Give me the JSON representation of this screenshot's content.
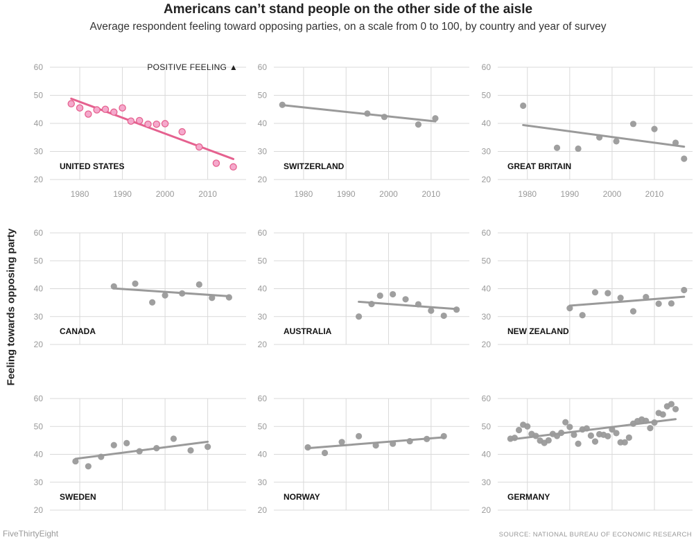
{
  "header": {
    "title": "Americans can’t stand people on the other side of the aisle",
    "subtitle": "Average respondent feeling toward opposing parties, on a scale from 0 to 100, by country and year of survey"
  },
  "footer": {
    "brand": "FiveThirtyEight",
    "source": "SOURCE: NATIONAL BUREAU OF ECONOMIC RESEARCH"
  },
  "colors": {
    "highlight": "#e5618f",
    "highlight_fill": "#f5a9cc",
    "neutral": "#9a9a9a",
    "grid": "#d9d9d9"
  },
  "chart_data": {
    "type": "scatter",
    "ylabel": "Feeling towards opposing party",
    "annotation": "POSITIVE FEELING ▲",
    "ylim": [
      20,
      60
    ],
    "yticks": [
      20,
      30,
      40,
      50,
      60
    ],
    "xlim": [
      1973,
      2019
    ],
    "xticks": [
      1980,
      1990,
      2000,
      2010
    ],
    "x_tick_label_rows": [
      0
    ],
    "panels": [
      {
        "name": "UNITED STATES",
        "highlight": true,
        "points": [
          [
            1978,
            47
          ],
          [
            1980,
            45.5
          ],
          [
            1982,
            43.3
          ],
          [
            1984,
            44.8
          ],
          [
            1986,
            45
          ],
          [
            1988,
            44
          ],
          [
            1990,
            45.5
          ],
          [
            1992,
            40.8
          ],
          [
            1994,
            41
          ],
          [
            1996,
            39.7
          ],
          [
            1998,
            39.7
          ],
          [
            2000,
            39.9
          ],
          [
            2004,
            37
          ],
          [
            2008,
            31.6
          ],
          [
            2012,
            25.8
          ],
          [
            2016,
            24.5
          ]
        ],
        "trend": [
          [
            1978,
            48.8
          ],
          [
            2016,
            27.3
          ]
        ]
      },
      {
        "name": "SWITZERLAND",
        "highlight": false,
        "points": [
          [
            1975,
            46.6
          ],
          [
            1995,
            43.5
          ],
          [
            1999,
            42.3
          ],
          [
            2007,
            39.6
          ],
          [
            2011,
            41.8
          ]
        ],
        "trend": [
          [
            1975,
            46.5
          ],
          [
            2011,
            40.7
          ]
        ]
      },
      {
        "name": "GREAT BRITAIN",
        "highlight": false,
        "points": [
          [
            1979,
            46.3
          ],
          [
            1987,
            31.3
          ],
          [
            1992,
            31
          ],
          [
            1997,
            35
          ],
          [
            2001,
            33.6
          ],
          [
            2005,
            39.8
          ],
          [
            2010,
            38
          ],
          [
            2015,
            33.1
          ],
          [
            2017,
            27.4
          ]
        ],
        "trend": [
          [
            1979,
            39.4
          ],
          [
            2017,
            31.7
          ]
        ]
      },
      {
        "name": "CANADA",
        "highlight": false,
        "points": [
          [
            1988,
            40.8
          ],
          [
            1993,
            41.8
          ],
          [
            1997,
            35.1
          ],
          [
            2000,
            37.6
          ],
          [
            2004,
            38.3
          ],
          [
            2008,
            41.5
          ],
          [
            2011,
            36.7
          ],
          [
            2015,
            36.9
          ]
        ],
        "trend": [
          [
            1988,
            40.1
          ],
          [
            2015,
            37.3
          ]
        ]
      },
      {
        "name": "AUSTRALIA",
        "highlight": false,
        "points": [
          [
            1993,
            30
          ],
          [
            1996,
            34.5
          ],
          [
            1998,
            37.5
          ],
          [
            2001,
            38
          ],
          [
            2004,
            36.2
          ],
          [
            2007,
            34.4
          ],
          [
            2010,
            32.1
          ],
          [
            2013,
            30.3
          ],
          [
            2016,
            32.5
          ]
        ],
        "trend": [
          [
            1993,
            35.3
          ],
          [
            2016,
            32.7
          ]
        ]
      },
      {
        "name": "NEW ZEALAND",
        "highlight": false,
        "points": [
          [
            1990,
            33
          ],
          [
            1993,
            30.5
          ],
          [
            1996,
            38.7
          ],
          [
            1999,
            38.4
          ],
          [
            2002,
            36.7
          ],
          [
            2005,
            31.9
          ],
          [
            2008,
            37
          ],
          [
            2011,
            34.6
          ],
          [
            2014,
            34.7
          ],
          [
            2017,
            39.5
          ]
        ],
        "trend": [
          [
            1990,
            33.9
          ],
          [
            2017,
            37.1
          ]
        ]
      },
      {
        "name": "SWEDEN",
        "highlight": false,
        "points": [
          [
            1979,
            37.5
          ],
          [
            1982,
            35.7
          ],
          [
            1985,
            39.1
          ],
          [
            1988,
            43.3
          ],
          [
            1991,
            44
          ],
          [
            1994,
            41.1
          ],
          [
            1998,
            42.2
          ],
          [
            2002,
            45.6
          ],
          [
            2006,
            41.4
          ],
          [
            2010,
            42.7
          ]
        ],
        "trend": [
          [
            1979,
            38.4
          ],
          [
            2010,
            44.5
          ]
        ]
      },
      {
        "name": "NORWAY",
        "highlight": false,
        "points": [
          [
            1981,
            42.5
          ],
          [
            1985,
            40.5
          ],
          [
            1989,
            44.4
          ],
          [
            1993,
            46.5
          ],
          [
            1997,
            43.2
          ],
          [
            2001,
            43.8
          ],
          [
            2005,
            44.7
          ],
          [
            2009,
            45.5
          ],
          [
            2013,
            46.5
          ]
        ],
        "trend": [
          [
            1981,
            42.2
          ],
          [
            2013,
            46.1
          ]
        ]
      },
      {
        "name": "GERMANY",
        "highlight": false,
        "points": [
          [
            1976,
            45.6
          ],
          [
            1977,
            45.9
          ],
          [
            1978,
            48.7
          ],
          [
            1979,
            50.6
          ],
          [
            1980,
            50
          ],
          [
            1981,
            47.3
          ],
          [
            1982,
            46.6
          ],
          [
            1983,
            44.9
          ],
          [
            1984,
            44.1
          ],
          [
            1985,
            45
          ],
          [
            1986,
            47.3
          ],
          [
            1987,
            46.6
          ],
          [
            1988,
            47.7
          ],
          [
            1989,
            51.5
          ],
          [
            1990,
            49.8
          ],
          [
            1991,
            47
          ],
          [
            1992,
            43.8
          ],
          [
            1993,
            48.9
          ],
          [
            1994,
            49.3
          ],
          [
            1995,
            46.7
          ],
          [
            1996,
            44.6
          ],
          [
            1997,
            47.2
          ],
          [
            1998,
            47
          ],
          [
            1999,
            46.5
          ],
          [
            2000,
            48.9
          ],
          [
            2001,
            47.6
          ],
          [
            2002,
            44.3
          ],
          [
            2003,
            44.3
          ],
          [
            2004,
            46
          ],
          [
            2005,
            51
          ],
          [
            2006,
            51.9
          ],
          [
            2007,
            52.5
          ],
          [
            2008,
            52
          ],
          [
            2009,
            49.4
          ],
          [
            2010,
            51.4
          ],
          [
            2011,
            54.8
          ],
          [
            2012,
            54.3
          ],
          [
            2013,
            57.2
          ],
          [
            2014,
            58
          ],
          [
            2015,
            56.2
          ]
        ],
        "trend": [
          [
            1976,
            45.3
          ],
          [
            2015,
            52.6
          ]
        ]
      }
    ]
  }
}
